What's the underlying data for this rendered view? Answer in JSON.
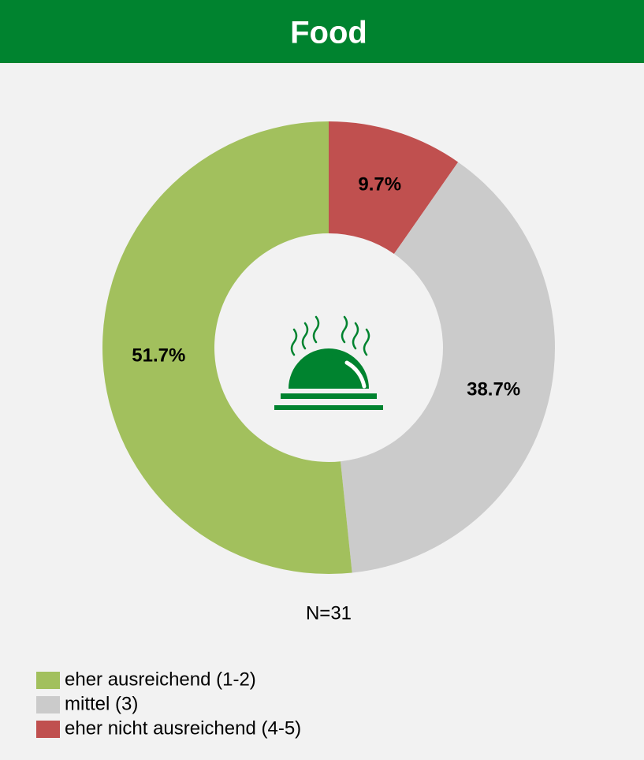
{
  "chart_data": {
    "type": "donut",
    "title": "Food",
    "annotation": "N=31",
    "categories": [
      "eher ausreichend (1-2)",
      "mittel (3)",
      "eher nicht ausreichend (4-5)"
    ],
    "values": [
      51.7,
      38.7,
      9.7
    ],
    "value_labels": [
      "51.7%",
      "38.7%",
      "9.7%"
    ],
    "colors": [
      "#a2c05d",
      "#cbcbcb",
      "#c0504f"
    ]
  }
}
